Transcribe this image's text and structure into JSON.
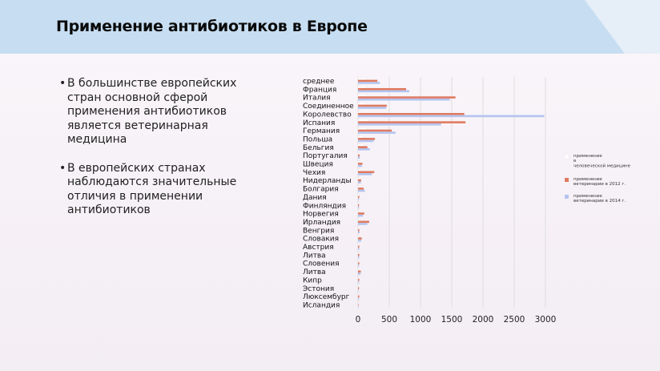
{
  "slide": {
    "title": "Применение антибиотиков в Европе",
    "bullets": [
      "В большинстве европейских стран основной сферой применения антибиотиков является ветеринарная медицина",
      "В европейских странах наблюдаются значительные отличия в применении антибиотиков"
    ]
  },
  "colors": {
    "human": "#ffffff",
    "vet2012": "#e07a5f",
    "vet2014": "#b4c4ee",
    "banner_light": "#c9def0",
    "banner_mid": "#b4d1ee"
  },
  "chart_data": {
    "type": "bar",
    "orientation": "horizontal",
    "categories": [
      "среднее",
      "Франция",
      "Италия",
      "Соединенное",
      "Королевство",
      "Испания",
      "Германия",
      "Польша",
      "Бельгия",
      "Португалия",
      "Швеция",
      "Чехия",
      "Нидерланды",
      "Болгария",
      "Дания",
      "Финляндия",
      "Норвегия",
      "Ирландия",
      "Венгрия",
      "Словакия",
      "Австрия",
      "Литва",
      "Словения",
      "Литва",
      "Кипр",
      "Эстония",
      "Люксембург",
      "Исландия"
    ],
    "series": [
      {
        "name": "применение в человеческой медицине",
        "values": [
          130,
          130,
          150,
          120,
          40,
          180,
          150,
          80,
          90,
          25,
          15,
          60,
          20,
          25,
          15,
          12,
          15,
          30,
          25,
          20,
          15,
          12,
          10,
          10,
          8,
          6,
          5,
          4
        ]
      },
      {
        "name": "применение ветеринарии в 2012 г.",
        "values": [
          310,
          770,
          1560,
          460,
          1700,
          1720,
          540,
          270,
          150,
          25,
          70,
          260,
          50,
          90,
          20,
          15,
          100,
          180,
          20,
          60,
          20,
          20,
          20,
          45,
          20,
          15,
          20,
          5
        ]
      },
      {
        "name": "применение ветеринарии в 2014 г.",
        "values": [
          350,
          820,
          1470,
          450,
          2980,
          1330,
          600,
          250,
          190,
          30,
          60,
          220,
          45,
          110,
          15,
          15,
          80,
          150,
          25,
          50,
          20,
          18,
          15,
          40,
          15,
          10,
          15,
          5
        ]
      }
    ],
    "xticks": [
      "0",
      "500",
      "1000",
      "1500",
      "2000",
      "2500",
      "3000"
    ],
    "xlim": [
      0,
      3000
    ],
    "legend": [
      "применение в человеческой медицине",
      "применение ветеринарии в 2012 г.",
      "применение ветеринарии в 2014 г."
    ]
  }
}
